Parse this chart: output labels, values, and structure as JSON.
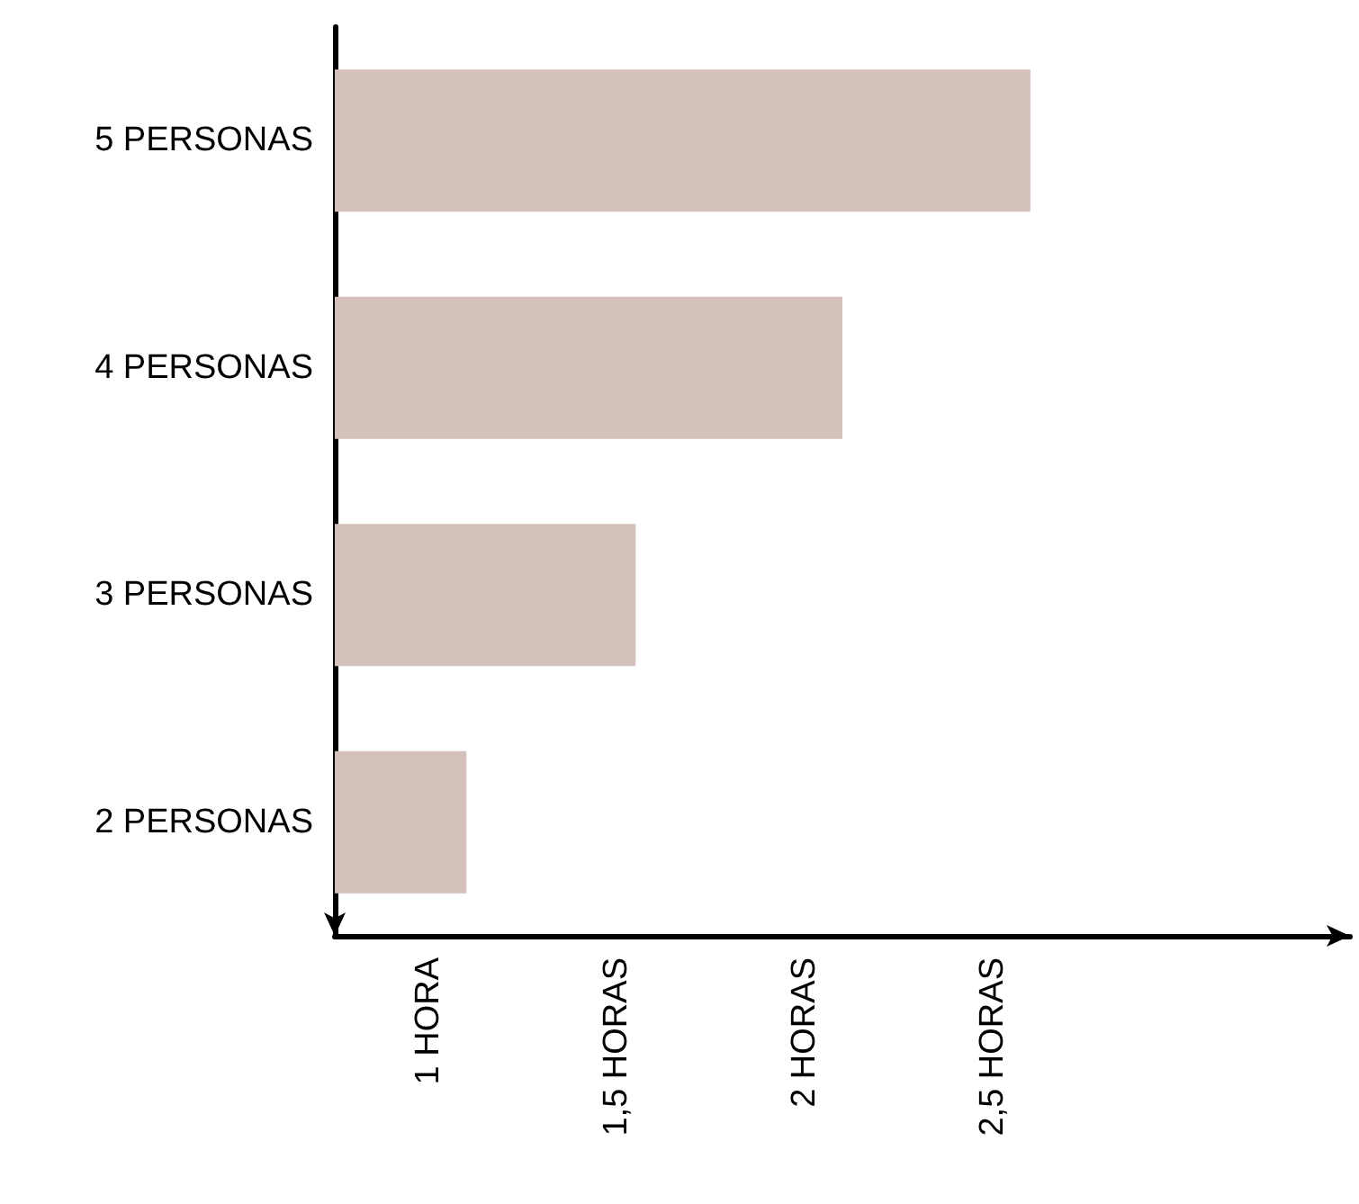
{
  "chart_data": {
    "type": "bar",
    "orientation": "horizontal",
    "categories": [
      "5 PERSONAS",
      "4 PERSONAS",
      "3 PERSONAS",
      "2 PERSONAS"
    ],
    "values": [
      2.6,
      2.1,
      1.55,
      1.1
    ],
    "color": "#d5c1bb",
    "xlim": [
      0.75,
      3.45
    ],
    "xticks": [
      {
        "value": 1,
        "label": "1 HORA"
      },
      {
        "value": 1.5,
        "label": "1,5 HORAS"
      },
      {
        "value": 2,
        "label": "2 HORAS"
      },
      {
        "value": 2.5,
        "label": "2,5 HORAS"
      }
    ],
    "grid": false
  }
}
